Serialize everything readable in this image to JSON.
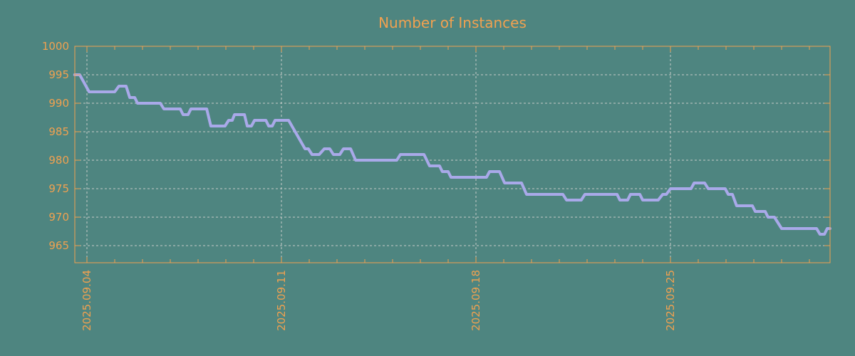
{
  "title": "Number of Instances",
  "colors": {
    "background": "#4e8580",
    "axis": "#f0a150",
    "title_text": "#f0a150",
    "tick_label_text": "#f0a150",
    "grid": "#c6ccc8",
    "series_line": "#a9a9e9"
  },
  "chart_data": {
    "type": "line",
    "title": "Number of Instances",
    "legend": null,
    "grid": true,
    "y_axis": {
      "ticks": [
        1000,
        995,
        990,
        985,
        980,
        975,
        970,
        965
      ],
      "range": [
        962,
        1000
      ],
      "gridlines_at": [
        995,
        990,
        985,
        980,
        975,
        970,
        965
      ]
    },
    "x_axis": {
      "tick_labels": [
        "2025.09.04",
        "2025.09.11",
        "2025.09.18",
        "2025.09.25"
      ],
      "major_tick_day_offsets": [
        0,
        7,
        14,
        21
      ],
      "minor_tick_interval_days": 1,
      "minor_tick_day_range": [
        0,
        26
      ],
      "range_day_offsets": [
        -0.44,
        26.74
      ],
      "label_rotation_deg": -90
    },
    "series": [
      {
        "name": "instances",
        "points_days_value": [
          [
            -0.44,
            995
          ],
          [
            -0.26,
            995
          ],
          [
            0.08,
            992
          ],
          [
            1.0,
            992
          ],
          [
            1.15,
            993
          ],
          [
            1.41,
            993
          ],
          [
            1.54,
            991
          ],
          [
            1.72,
            991
          ],
          [
            1.82,
            990
          ],
          [
            2.64,
            990
          ],
          [
            2.77,
            989
          ],
          [
            3.36,
            989
          ],
          [
            3.46,
            988
          ],
          [
            3.64,
            988
          ],
          [
            3.74,
            989
          ],
          [
            4.31,
            989
          ],
          [
            4.46,
            986
          ],
          [
            4.97,
            986
          ],
          [
            5.1,
            987
          ],
          [
            5.23,
            987
          ],
          [
            5.31,
            988
          ],
          [
            5.67,
            988
          ],
          [
            5.77,
            986
          ],
          [
            5.92,
            986
          ],
          [
            6.03,
            987
          ],
          [
            6.44,
            987
          ],
          [
            6.54,
            986
          ],
          [
            6.67,
            986
          ],
          [
            6.77,
            987
          ],
          [
            7.26,
            987
          ],
          [
            7.85,
            982
          ],
          [
            7.97,
            982
          ],
          [
            8.1,
            981
          ],
          [
            8.36,
            981
          ],
          [
            8.54,
            982
          ],
          [
            8.74,
            982
          ],
          [
            8.87,
            981
          ],
          [
            9.1,
            981
          ],
          [
            9.23,
            982
          ],
          [
            9.49,
            982
          ],
          [
            9.67,
            980
          ],
          [
            11.15,
            980
          ],
          [
            11.28,
            981
          ],
          [
            12.13,
            981
          ],
          [
            12.33,
            979
          ],
          [
            12.69,
            979
          ],
          [
            12.79,
            978
          ],
          [
            13.0,
            978
          ],
          [
            13.1,
            977
          ],
          [
            14.38,
            977
          ],
          [
            14.49,
            978
          ],
          [
            14.85,
            978
          ],
          [
            15.03,
            976
          ],
          [
            15.64,
            976
          ],
          [
            15.82,
            974
          ],
          [
            17.13,
            974
          ],
          [
            17.26,
            973
          ],
          [
            17.79,
            973
          ],
          [
            17.92,
            974
          ],
          [
            19.08,
            974
          ],
          [
            19.18,
            973
          ],
          [
            19.46,
            973
          ],
          [
            19.56,
            974
          ],
          [
            19.9,
            974
          ],
          [
            20.0,
            973
          ],
          [
            20.56,
            973
          ],
          [
            20.72,
            974
          ],
          [
            20.85,
            974
          ],
          [
            21.0,
            975
          ],
          [
            21.74,
            975
          ],
          [
            21.85,
            976
          ],
          [
            22.23,
            976
          ],
          [
            22.36,
            975
          ],
          [
            22.97,
            975
          ],
          [
            23.08,
            974
          ],
          [
            23.23,
            974
          ],
          [
            23.38,
            972
          ],
          [
            23.95,
            972
          ],
          [
            24.05,
            971
          ],
          [
            24.41,
            971
          ],
          [
            24.51,
            970
          ],
          [
            24.74,
            970
          ],
          [
            25.0,
            968
          ],
          [
            26.26,
            968
          ],
          [
            26.38,
            967
          ],
          [
            26.54,
            967
          ],
          [
            26.64,
            968
          ],
          [
            26.74,
            968
          ]
        ]
      }
    ]
  }
}
